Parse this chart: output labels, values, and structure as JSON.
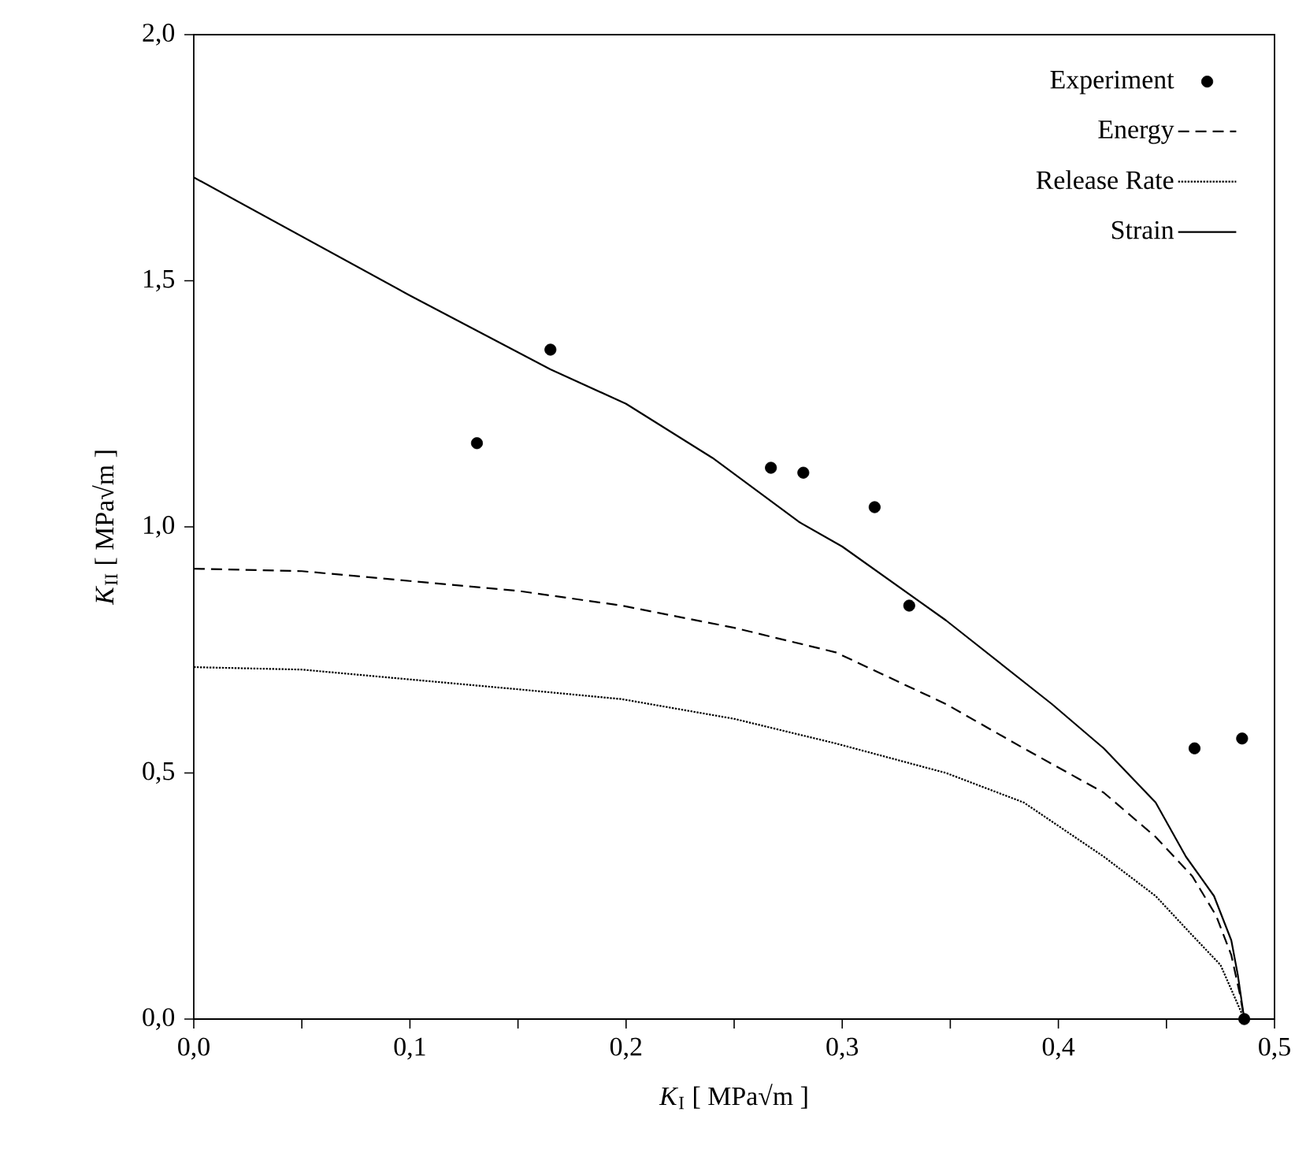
{
  "chart_data": {
    "type": "line",
    "xlabel": "*K*$_{I}$  [ MPa√m ]",
    "ylabel": "*K*$_{II}$  [ MPa√m ]",
    "xlim": [
      0,
      0.5
    ],
    "ylim": [
      0,
      2.0
    ],
    "xticks": [
      {
        "value": 0,
        "label": "0,0"
      },
      {
        "value": 0.05,
        "label": null
      },
      {
        "value": 0.1,
        "label": "0,1"
      },
      {
        "value": 0.15,
        "label": null
      },
      {
        "value": 0.2,
        "label": "0,2"
      },
      {
        "value": 0.25,
        "label": null
      },
      {
        "value": 0.3,
        "label": "0,3"
      },
      {
        "value": 0.35,
        "label": null
      },
      {
        "value": 0.4,
        "label": "0,4"
      },
      {
        "value": 0.45,
        "label": null
      },
      {
        "value": 0.5,
        "label": "0,5"
      }
    ],
    "yticks": [
      {
        "value": 0,
        "label": "0,0"
      },
      {
        "value": 0.5,
        "label": "0,5"
      },
      {
        "value": 1.0,
        "label": "1,0"
      },
      {
        "value": 1.5,
        "label": "1,5"
      },
      {
        "value": 2.0,
        "label": "2,0"
      }
    ],
    "legend": "top right",
    "series": [
      {
        "name": "Experiment",
        "type": "scatter",
        "marker": "circle",
        "color": "#000000",
        "x": [
          0.131,
          0.165,
          0.267,
          0.282,
          0.315,
          0.331,
          0.463,
          0.485,
          0.486
        ],
        "values": [
          1.17,
          1.36,
          1.12,
          1.11,
          1.04,
          0.84,
          0.55,
          0.57,
          0.0
        ]
      },
      {
        "name": "Energy",
        "line_style": "dashed",
        "color": "#000000",
        "x": [
          0,
          0.05,
          0.1,
          0.15,
          0.198,
          0.25,
          0.297,
          0.348,
          0.384,
          0.421,
          0.445,
          0.462,
          0.473,
          0.48,
          0.484,
          0.486
        ],
        "values": [
          0.915,
          0.91,
          0.89,
          0.87,
          0.84,
          0.795,
          0.745,
          0.64,
          0.55,
          0.46,
          0.37,
          0.29,
          0.21,
          0.13,
          0.05,
          0.0
        ]
      },
      {
        "name": "Release Rate",
        "line_style": "dotted",
        "color": "#000000",
        "x": [
          0,
          0.05,
          0.1,
          0.15,
          0.198,
          0.25,
          0.297,
          0.348,
          0.384,
          0.421,
          0.445,
          0.462,
          0.475,
          0.481,
          0.486
        ],
        "values": [
          0.715,
          0.71,
          0.69,
          0.67,
          0.65,
          0.61,
          0.56,
          0.5,
          0.44,
          0.33,
          0.25,
          0.17,
          0.11,
          0.05,
          0.0
        ]
      },
      {
        "name": "Strain",
        "line_style": "solid",
        "color": "#000000",
        "x": [
          0,
          0.05,
          0.1,
          0.165,
          0.2,
          0.24,
          0.28,
          0.3,
          0.348,
          0.397,
          0.421,
          0.445,
          0.459,
          0.472,
          0.48,
          0.483,
          0.486
        ],
        "values": [
          1.71,
          1.59,
          1.47,
          1.32,
          1.25,
          1.14,
          1.01,
          0.96,
          0.81,
          0.64,
          0.55,
          0.44,
          0.33,
          0.25,
          0.16,
          0.09,
          0.0
        ]
      }
    ]
  }
}
